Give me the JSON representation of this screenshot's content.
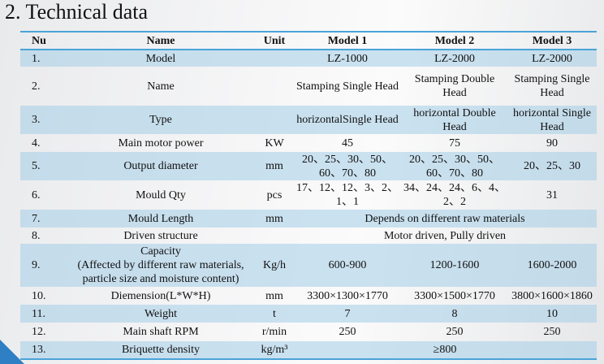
{
  "title": "2.  Technical data",
  "colors": {
    "accent": "#4aa3d8",
    "row_shade": "#c5dff0",
    "corner": "#2f7fc4"
  },
  "headers": [
    "Nu",
    "Name",
    "Unit",
    "Model 1",
    "Model 2",
    "Model 3"
  ],
  "rows": [
    {
      "nu": "1.",
      "name": "Model",
      "unit": "",
      "values": [
        "LZ-1000",
        "LZ-2000",
        "LZ-2000"
      ]
    },
    {
      "nu": "2.",
      "name": "Name",
      "unit": "",
      "values": [
        "Stamping Single Head",
        "Stamping Double Head",
        "Stamping Single Head"
      ]
    },
    {
      "nu": "3.",
      "name": "Type",
      "unit": "",
      "values": [
        "horizontalSingle Head",
        "horizontal Double Head",
        "horizontal Single Head"
      ]
    },
    {
      "nu": "4.",
      "name": "Main motor power",
      "unit": "KW",
      "values": [
        "45",
        "75",
        "90"
      ]
    },
    {
      "nu": "5.",
      "name": "Output diameter",
      "unit": "mm",
      "values": [
        "20、25、30、50、60、70、80",
        "20、25、30、50、60、70、80",
        "20、25、30"
      ]
    },
    {
      "nu": "6.",
      "name": "Mould Qty",
      "unit": "pcs",
      "values": [
        "17、12、12、3、2、1、1",
        "34、24、24、6、4、2、2",
        "31"
      ]
    },
    {
      "nu": "7.",
      "name": "Mould Length",
      "unit": "mm",
      "values": [
        "Depends on  different raw materials"
      ]
    },
    {
      "nu": "8.",
      "name": "Driven structure",
      "unit": "",
      "values": [
        "Motor driven, Pully driven"
      ]
    },
    {
      "nu": "9.",
      "name": "Capacity\n(Affected by different raw materials, particle size and moisture content)",
      "unit": "Kg/h",
      "values": [
        "600-900",
        "1200-1600",
        "1600-2000"
      ]
    },
    {
      "nu": "10.",
      "name": "Diemension(L*W*H)",
      "unit": "mm",
      "values": [
        "3300×1300×1770",
        "3300×1500×1770",
        "3800×1600×1860"
      ]
    },
    {
      "nu": "11.",
      "name": "Weight",
      "unit": "t",
      "values": [
        "7",
        "8",
        "10"
      ]
    },
    {
      "nu": "12.",
      "name": "Main shaft RPM",
      "unit": "r/min",
      "values": [
        "250",
        "250",
        "250"
      ]
    },
    {
      "nu": "13.",
      "name": "Briquette density",
      "unit": "kg/m³",
      "values": [
        "≥800"
      ]
    }
  ]
}
